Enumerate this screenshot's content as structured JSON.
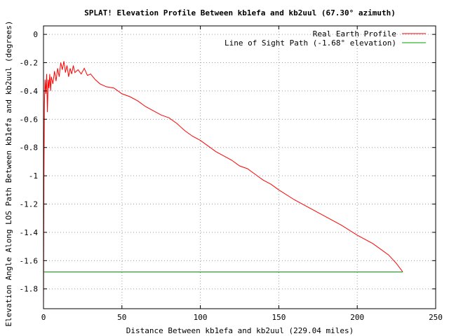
{
  "chart_data": {
    "type": "line",
    "title": "SPLAT! Elevation Profile Between kb1efa and kb2uul (67.30° azimuth)",
    "xlabel": "Distance Between kb1efa and kb2uul (229.04 miles)",
    "ylabel": "Elevation Angle Along LOS Path Between kb1efa and kb2uul (degrees)",
    "xlim": [
      0,
      250
    ],
    "ylim": [
      -1.94,
      0.06
    ],
    "x_ticks": [
      0,
      50,
      100,
      150,
      200,
      250
    ],
    "y_ticks": [
      0,
      -0.2,
      -0.4,
      -0.6,
      -0.8,
      -1,
      -1.2,
      -1.4,
      -1.6,
      -1.8
    ],
    "x_tick_labels": [
      "0",
      "50",
      "100",
      "150",
      "200",
      "250"
    ],
    "y_tick_labels": [
      "0",
      "-0.2",
      "-0.4",
      "-0.6",
      "-0.8",
      "-1",
      "-1.2",
      "-1.4",
      "-1.6",
      "-1.8"
    ],
    "grid": true,
    "legend_position": "top-right",
    "series": [
      {
        "name": "Real Earth Profile",
        "color": "#ff0000",
        "x": [
          0,
          0.3,
          0.6,
          1,
          1.5,
          2,
          2.5,
          3,
          3.5,
          4,
          4.5,
          5,
          6,
          7,
          8,
          9,
          10,
          11,
          12,
          13,
          14,
          15,
          16,
          17,
          18,
          19,
          20,
          22,
          24,
          26,
          28,
          30,
          33,
          36,
          40,
          45,
          50,
          55,
          60,
          65,
          70,
          75,
          80,
          85,
          90,
          95,
          100,
          105,
          110,
          115,
          120,
          125,
          130,
          135,
          140,
          145,
          150,
          160,
          170,
          180,
          190,
          200,
          210,
          220,
          225,
          229.04
        ],
        "y": [
          -1.93,
          -0.95,
          -0.5,
          -0.32,
          -0.42,
          -0.28,
          -0.55,
          -0.32,
          -0.38,
          -0.28,
          -0.4,
          -0.3,
          -0.35,
          -0.26,
          -0.33,
          -0.24,
          -0.3,
          -0.2,
          -0.25,
          -0.19,
          -0.27,
          -0.22,
          -0.3,
          -0.24,
          -0.28,
          -0.22,
          -0.27,
          -0.25,
          -0.28,
          -0.24,
          -0.29,
          -0.28,
          -0.32,
          -0.35,
          -0.37,
          -0.38,
          -0.42,
          -0.44,
          -0.47,
          -0.51,
          -0.54,
          -0.57,
          -0.59,
          -0.63,
          -0.68,
          -0.72,
          -0.75,
          -0.79,
          -0.83,
          -0.86,
          -0.89,
          -0.93,
          -0.95,
          -0.99,
          -1.03,
          -1.06,
          -1.1,
          -1.17,
          -1.23,
          -1.29,
          -1.35,
          -1.42,
          -1.48,
          -1.56,
          -1.62,
          -1.68
        ]
      },
      {
        "name": "Line of Sight Path (-1.68° elevation)",
        "color": "#00a000",
        "x": [
          0,
          229.04
        ],
        "y": [
          -1.68,
          -1.68
        ]
      }
    ]
  }
}
